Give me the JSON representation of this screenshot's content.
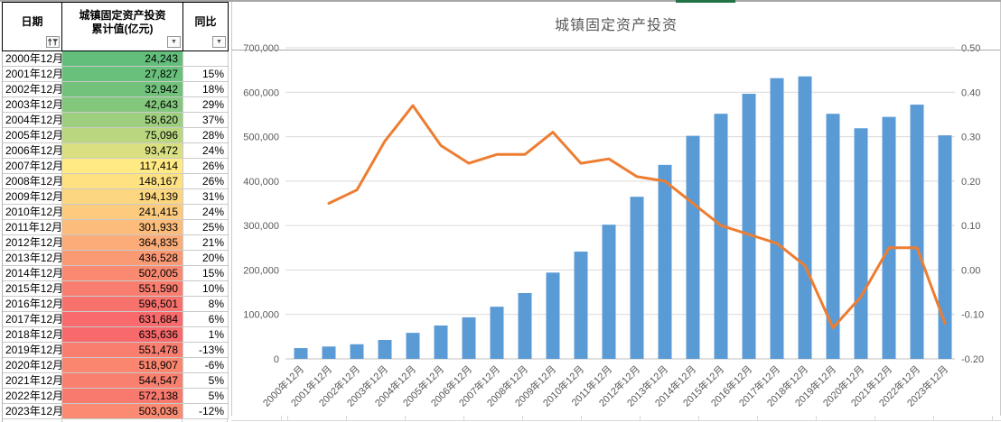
{
  "sheet": {
    "tab_accent_color": "#217346"
  },
  "table": {
    "columns": [
      {
        "label": "日期",
        "filter": "sort-asc-filter"
      },
      {
        "label": "城镇固定资产投资\n累计值(亿元)",
        "filter": "dropdown"
      },
      {
        "label": "同比",
        "filter": "dropdown"
      }
    ],
    "rows": [
      {
        "date": "2000年12月",
        "value": "24,243",
        "yoy": "",
        "color": "#63BE7B"
      },
      {
        "date": "2001年12月",
        "value": "27,827",
        "yoy": "15%",
        "color": "#69C07B"
      },
      {
        "date": "2002年12月",
        "value": "32,942",
        "yoy": "18%",
        "color": "#72C27C"
      },
      {
        "date": "2003年12月",
        "value": "42,643",
        "yoy": "29%",
        "color": "#83C77D"
      },
      {
        "date": "2004年12月",
        "value": "58,620",
        "yoy": "37%",
        "color": "#9ECF7E"
      },
      {
        "date": "2005年12月",
        "value": "75,096",
        "yoy": "28%",
        "color": "#BAD780"
      },
      {
        "date": "2006年12月",
        "value": "93,472",
        "yoy": "24%",
        "color": "#DAE081"
      },
      {
        "date": "2007年12月",
        "value": "117,414",
        "yoy": "26%",
        "color": "#FFEA84"
      },
      {
        "date": "2008年12月",
        "value": "148,167",
        "yoy": "26%",
        "color": "#FEE282"
      },
      {
        "date": "2009年12月",
        "value": "194,139",
        "yoy": "31%",
        "color": "#FDD780"
      },
      {
        "date": "2010年12月",
        "value": "241,415",
        "yoy": "24%",
        "color": "#FDCB7E"
      },
      {
        "date": "2011年12月",
        "value": "301,933",
        "yoy": "25%",
        "color": "#FCBC7B"
      },
      {
        "date": "2012年12月",
        "value": "364,835",
        "yoy": "21%",
        "color": "#FBAC78"
      },
      {
        "date": "2013年12月",
        "value": "436,528",
        "yoy": "20%",
        "color": "#FA9A75"
      },
      {
        "date": "2014年12月",
        "value": "502,005",
        "yoy": "15%",
        "color": "#F98A71"
      },
      {
        "date": "2015年12月",
        "value": "551,590",
        "yoy": "10%",
        "color": "#F97E6F"
      },
      {
        "date": "2016年12月",
        "value": "596,501",
        "yoy": "8%",
        "color": "#F8726D"
      },
      {
        "date": "2017年12月",
        "value": "631,684",
        "yoy": "6%",
        "color": "#F86A6B"
      },
      {
        "date": "2018年12月",
        "value": "635,636",
        "yoy": "1%",
        "color": "#F8696B"
      },
      {
        "date": "2019年12月",
        "value": "551,478",
        "yoy": "-13%",
        "color": "#F97E6F"
      },
      {
        "date": "2020年12月",
        "value": "518,907",
        "yoy": "-6%",
        "color": "#FA8670"
      },
      {
        "date": "2021年12月",
        "value": "544,547",
        "yoy": "5%",
        "color": "#F9806F"
      },
      {
        "date": "2022年12月",
        "value": "572,138",
        "yoy": "5%",
        "color": "#F8796E"
      },
      {
        "date": "2023年12月",
        "value": "503,036",
        "yoy": "-12%",
        "color": "#FA8A71"
      }
    ]
  },
  "chart_data": {
    "type": "bar",
    "title": "城镇固定资产投资",
    "categories": [
      "2000年12月",
      "2001年12月",
      "2002年12月",
      "2003年12月",
      "2004年12月",
      "2005年12月",
      "2006年12月",
      "2007年12月",
      "2008年12月",
      "2009年12月",
      "2010年12月",
      "2011年12月",
      "2012年12月",
      "2013年12月",
      "2014年12月",
      "2015年12月",
      "2016年12月",
      "2017年12月",
      "2018年12月",
      "2019年12月",
      "2020年12月",
      "2021年12月",
      "2022年12月",
      "2023年12月"
    ],
    "series": [
      {
        "name": "城镇固定资产投资累计值(亿元)",
        "type": "bar",
        "axis": "left",
        "color": "#5B9BD5",
        "values": [
          24243,
          27827,
          32942,
          42643,
          58620,
          75096,
          93472,
          117414,
          148167,
          194139,
          241415,
          301933,
          364835,
          436528,
          502005,
          551590,
          596501,
          631684,
          635636,
          551478,
          518907,
          544547,
          572138,
          503036
        ]
      },
      {
        "name": "同比",
        "type": "line",
        "axis": "right",
        "color": "#ED7D31",
        "values": [
          null,
          0.15,
          0.18,
          0.29,
          0.37,
          0.28,
          0.24,
          0.26,
          0.26,
          0.31,
          0.24,
          0.25,
          0.21,
          0.2,
          0.15,
          0.1,
          0.08,
          0.06,
          0.01,
          -0.13,
          -0.06,
          0.05,
          0.05,
          -0.12
        ]
      }
    ],
    "left_axis": {
      "min": 0,
      "max": 700000,
      "tick_labels": [
        "700,000",
        "600,000",
        "500,000",
        "400,000",
        "300,000",
        "200,000",
        "100,000",
        "0"
      ]
    },
    "right_axis": {
      "min": -0.2,
      "max": 0.5,
      "tick_labels": [
        "0.50",
        "0.40",
        "0.30",
        "0.20",
        "0.10",
        "0.00",
        "-0.10",
        "-0.20"
      ]
    },
    "grid": true,
    "legend": "none"
  }
}
